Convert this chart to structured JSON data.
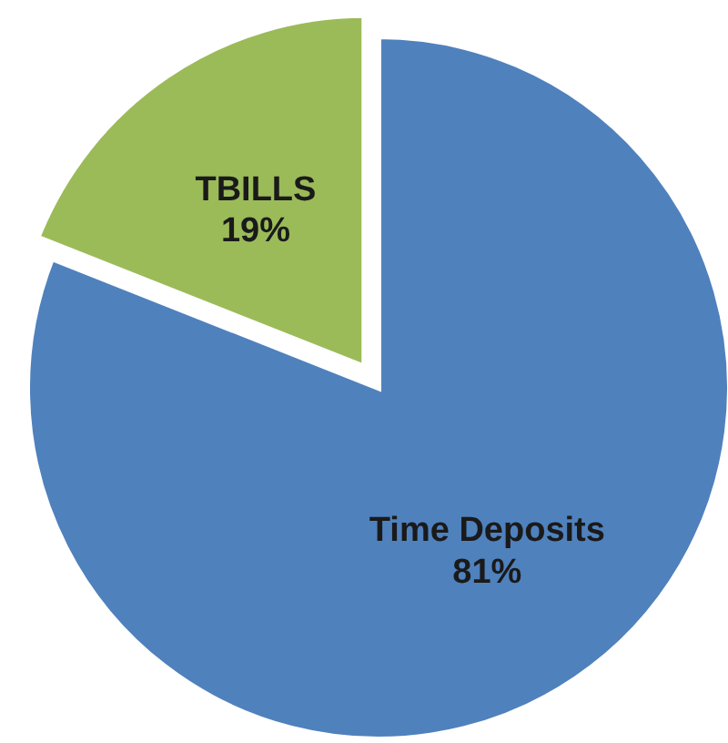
{
  "chart_data": {
    "type": "pie",
    "categories": [
      "Time Deposits",
      "TBILLS"
    ],
    "values": [
      81,
      19
    ],
    "colors": [
      "#4f81bd",
      "#9bbb59"
    ],
    "value_labels": [
      "81%",
      "19%"
    ]
  }
}
